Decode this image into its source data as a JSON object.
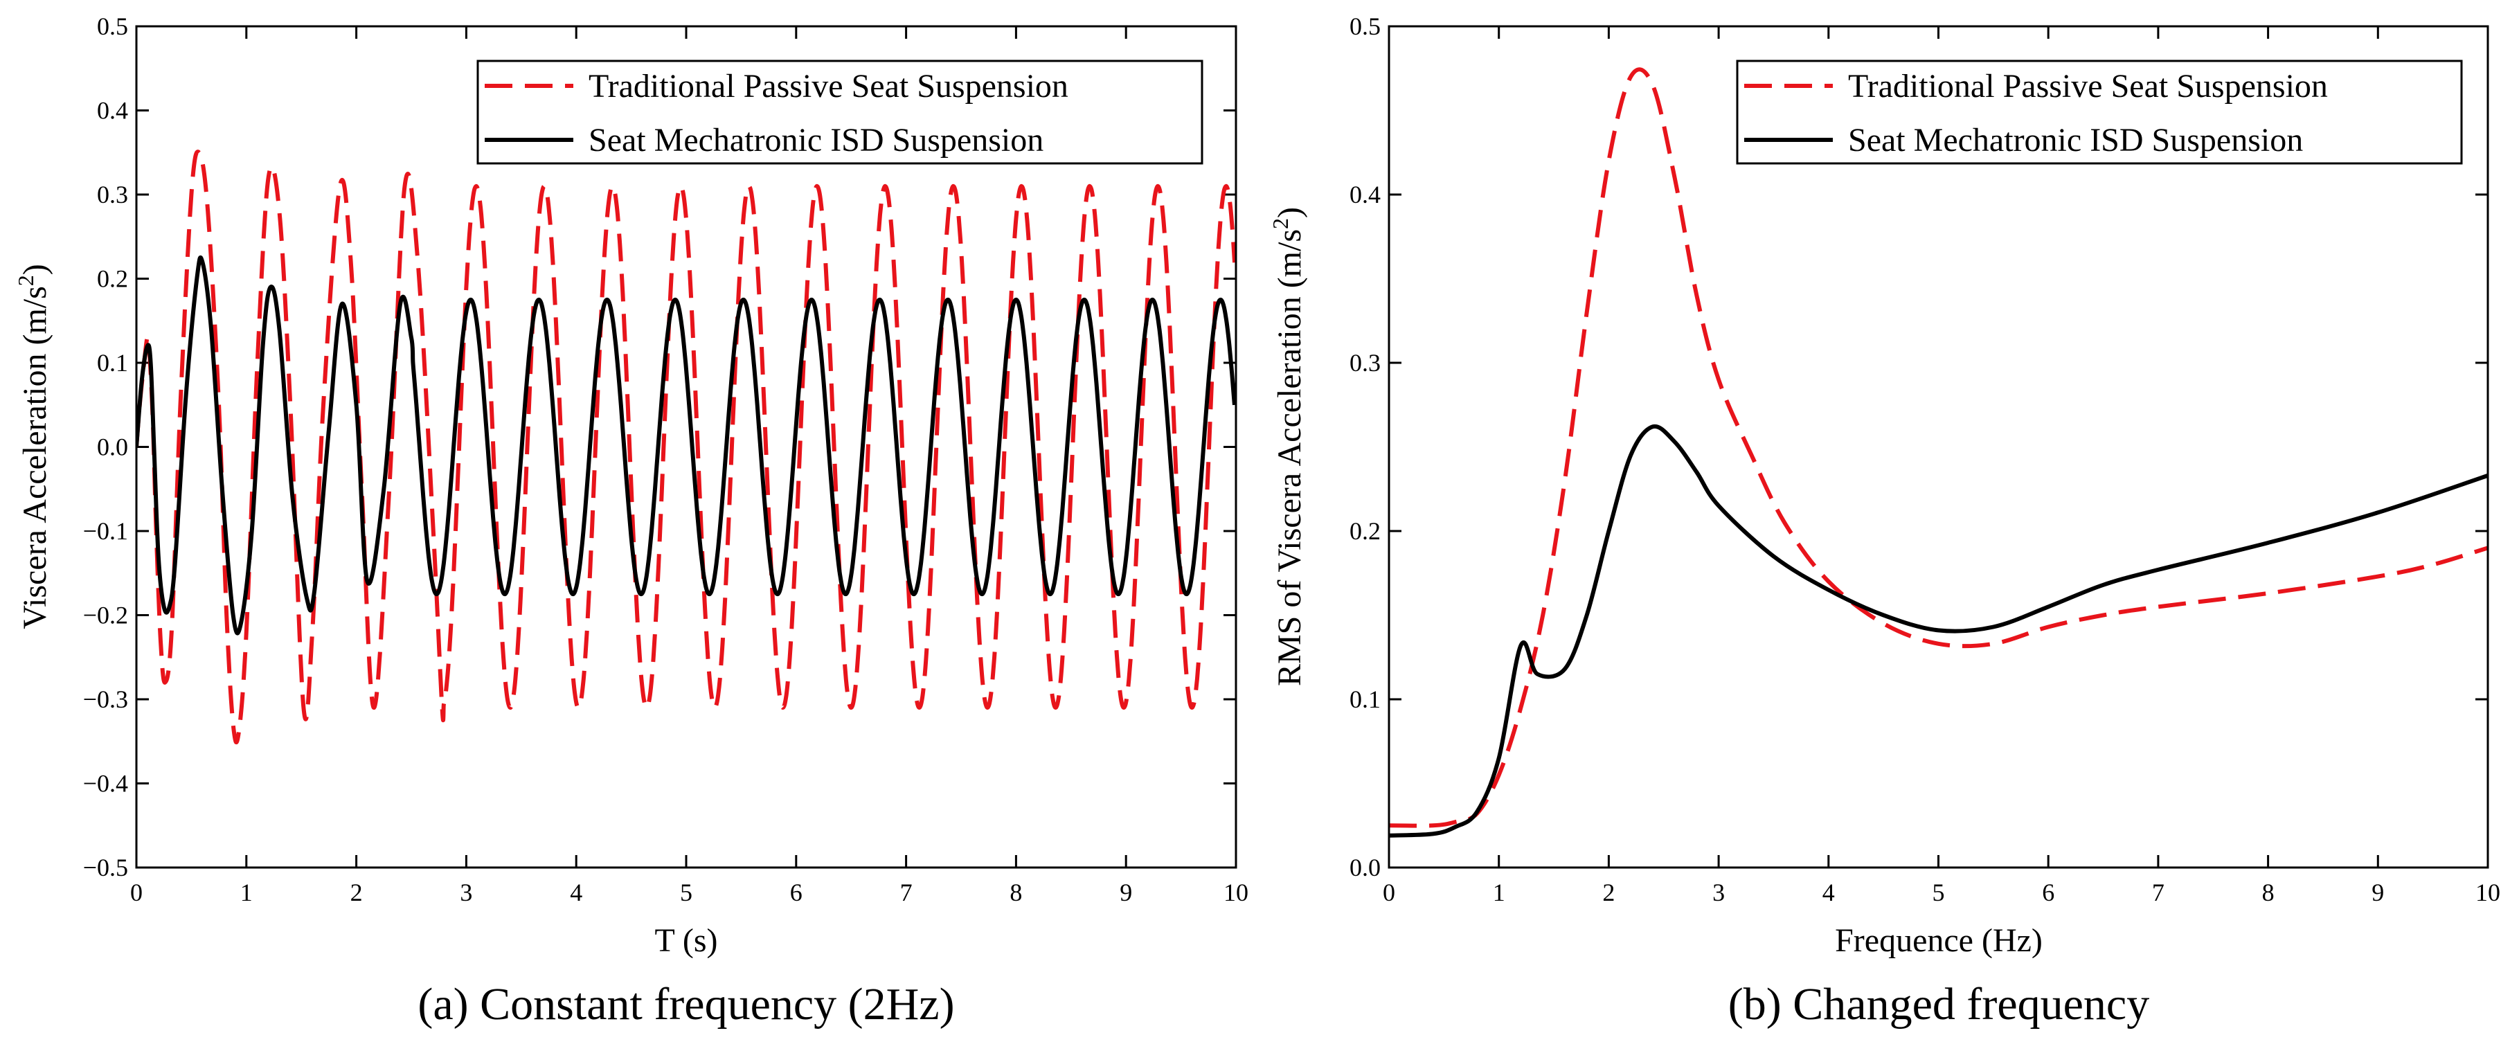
{
  "colors": {
    "passive": "#e8141b",
    "isd": "#000000"
  },
  "chart_data": [
    {
      "id": "a",
      "type": "line",
      "caption": "(a) Constant frequency (2Hz)",
      "xlabel": "T (s)",
      "ylabel": "Viscera Acceleration (m/s²)",
      "xlim": [
        0,
        10
      ],
      "ylim": [
        -0.5,
        0.5
      ],
      "xticks": [
        0,
        1,
        2,
        3,
        4,
        5,
        6,
        7,
        8,
        9,
        10
      ],
      "xtick_labels": [
        "0",
        "1",
        "2",
        "3",
        "4",
        "5",
        "6",
        "7",
        "8",
        "9",
        "10"
      ],
      "yticks": [
        -0.5,
        -0.4,
        -0.3,
        -0.2,
        -0.1,
        0.0,
        0.1,
        0.2,
        0.3,
        0.4,
        0.5
      ],
      "ytick_labels": [
        "−0.5",
        "−0.4",
        "−0.3",
        "−0.2",
        "−0.1",
        "0.0",
        "0.1",
        "0.2",
        "0.3",
        "0.4",
        "0.5"
      ],
      "legend_position": "top-right",
      "series": [
        {
          "name": "Traditional Passive Seat Suspension",
          "style": "dashed",
          "color": "#e8141b",
          "x": [
            0,
            0.03,
            0.07,
            0.1,
            0.12,
            0.15,
            0.18,
            0.22,
            0.26,
            0.32,
            0.4,
            0.5,
            0.57,
            0.65,
            0.75,
            0.82,
            0.88,
            0.93,
            1.0,
            1.1,
            1.2,
            1.3,
            1.4,
            1.52,
            1.6,
            1.7,
            1.85,
            1.95,
            2.05,
            2.16,
            2.3,
            2.44,
            2.56,
            2.7,
            2.78
          ],
          "y": [
            0,
            0.05,
            0.1,
            0.13,
            0.11,
            0.03,
            -0.1,
            -0.23,
            -0.28,
            -0.22,
            0.05,
            0.3,
            0.35,
            0.28,
            0.05,
            -0.2,
            -0.33,
            -0.34,
            -0.22,
            0.1,
            0.32,
            0.28,
            0.05,
            -0.31,
            -0.22,
            0.05,
            0.31,
            0.22,
            -0.05,
            -0.31,
            -0.05,
            0.31,
            0.22,
            -0.1,
            -0.31
          ],
          "periodic": {
            "from": 2.78,
            "to": 10,
            "period": 0.62,
            "amplitude": 0.31,
            "phase_peak_at": 2.47
          }
        },
        {
          "name": "Seat Mechatronic ISD Suspension",
          "style": "solid",
          "color": "#000000",
          "x": [
            0,
            0.05,
            0.1,
            0.13,
            0.16,
            0.2,
            0.25,
            0.3,
            0.35,
            0.45,
            0.55,
            0.6,
            0.68,
            0.78,
            0.88,
            0.95,
            1.05,
            1.15,
            1.22,
            1.3,
            1.42,
            1.55,
            1.62,
            1.75,
            1.87,
            2.0,
            2.1,
            2.25,
            2.4,
            2.5
          ],
          "y": [
            0,
            0.08,
            0.12,
            0.1,
            0.0,
            -0.13,
            -0.19,
            -0.19,
            -0.14,
            0.06,
            0.2,
            0.22,
            0.14,
            -0.05,
            -0.2,
            -0.21,
            -0.1,
            0.12,
            0.19,
            0.14,
            -0.06,
            -0.18,
            -0.17,
            0.02,
            0.17,
            0.05,
            -0.16,
            -0.05,
            0.17,
            0.13
          ],
          "periodic": {
            "from": 2.5,
            "to": 10,
            "period": 0.62,
            "amplitude": 0.175,
            "phase_peak_at": 2.42
          }
        }
      ]
    },
    {
      "id": "b",
      "type": "line",
      "caption": "(b) Changed frequency",
      "xlabel": "Frequence (Hz)",
      "ylabel": "RMS of  Viscera Acceleration (m/s²)",
      "xlim": [
        0,
        10
      ],
      "ylim": [
        0,
        0.5
      ],
      "xticks": [
        0,
        1,
        2,
        3,
        4,
        5,
        6,
        7,
        8,
        9,
        10
      ],
      "xtick_labels": [
        "0",
        "1",
        "2",
        "3",
        "4",
        "5",
        "6",
        "7",
        "8",
        "9",
        "10"
      ],
      "yticks": [
        0,
        0.1,
        0.2,
        0.3,
        0.4,
        0.5
      ],
      "ytick_labels": [
        "0.0",
        "0.1",
        "0.2",
        "0.3",
        "0.4",
        "0.5"
      ],
      "legend_position": "top-right",
      "series": [
        {
          "name": "Traditional Passive Seat Suspension",
          "style": "dashed",
          "color": "#e8141b",
          "x": [
            0,
            0.4,
            0.6,
            0.8,
            1.0,
            1.2,
            1.4,
            1.6,
            1.8,
            2.0,
            2.2,
            2.4,
            2.6,
            2.8,
            3.0,
            3.3,
            3.6,
            4.0,
            4.5,
            5.0,
            5.5,
            6.0,
            6.5,
            7.0,
            8.0,
            9.0,
            9.5,
            10.0
          ],
          "y": [
            0.025,
            0.025,
            0.027,
            0.032,
            0.055,
            0.095,
            0.15,
            0.23,
            0.33,
            0.42,
            0.47,
            0.465,
            0.41,
            0.34,
            0.29,
            0.245,
            0.205,
            0.17,
            0.145,
            0.133,
            0.133,
            0.143,
            0.15,
            0.155,
            0.163,
            0.173,
            0.18,
            0.19
          ]
        },
        {
          "name": "Seat Mechatronic ISD Suspension",
          "style": "solid",
          "color": "#000000",
          "x": [
            0,
            0.4,
            0.6,
            0.8,
            1.0,
            1.2,
            1.35,
            1.6,
            1.8,
            2.0,
            2.2,
            2.4,
            2.6,
            2.8,
            3.0,
            3.5,
            4.0,
            4.5,
            5.0,
            5.5,
            6.0,
            6.5,
            7.0,
            8.0,
            9.0,
            10.0
          ],
          "y": [
            0.019,
            0.02,
            0.024,
            0.033,
            0.065,
            0.132,
            0.115,
            0.118,
            0.15,
            0.2,
            0.245,
            0.262,
            0.253,
            0.235,
            0.215,
            0.185,
            0.165,
            0.15,
            0.141,
            0.143,
            0.155,
            0.168,
            0.177,
            0.193,
            0.211,
            0.233
          ]
        }
      ]
    }
  ]
}
